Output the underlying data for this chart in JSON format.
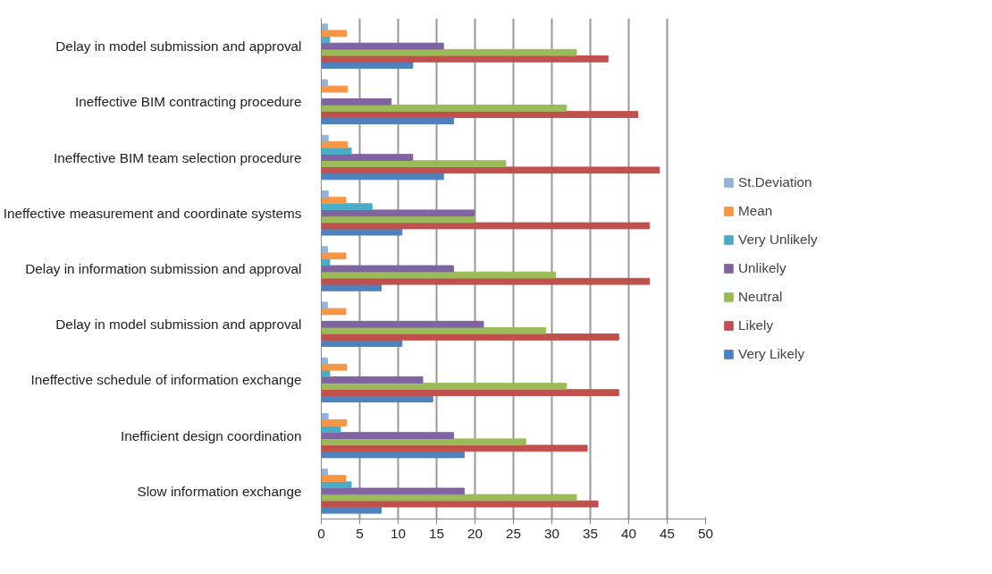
{
  "chart_data": {
    "type": "bar",
    "orientation": "horizontal",
    "categories": [
      "Delay in model submission and approval",
      "Ineffective BIM contracting procedure",
      "Ineffective BIM team selection procedure",
      "Ineffective measurement and coordinate systems",
      "Delay in information submission and approval",
      "Delay in model submission and approval",
      "Ineffective schedule of information exchange",
      "Inefficient design coordination",
      "Slow information exchange"
    ],
    "series": [
      {
        "name": "Very Likely",
        "color": "#4f81bd",
        "values": [
          11.9,
          17.2,
          15.9,
          10.5,
          7.8,
          10.5,
          14.5,
          18.6,
          7.8
        ]
      },
      {
        "name": "Likely",
        "color": "#c0504d",
        "values": [
          37.3,
          41.2,
          44.0,
          42.7,
          42.7,
          38.7,
          38.7,
          34.6,
          36.0
        ]
      },
      {
        "name": "Neutral",
        "color": "#9bbb59",
        "values": [
          33.2,
          31.9,
          24.0,
          20.0,
          30.5,
          29.2,
          31.9,
          26.6,
          33.2
        ]
      },
      {
        "name": "Unlikely",
        "color": "#8064a2",
        "values": [
          15.9,
          9.1,
          11.9,
          19.9,
          17.2,
          21.1,
          13.2,
          17.2,
          18.6
        ]
      },
      {
        "name": "Very Unlikely",
        "color": "#4bacc6",
        "values": [
          1.1,
          null,
          3.9,
          6.6,
          1.1,
          null,
          1.1,
          2.5,
          3.9
        ]
      },
      {
        "name": "Mean",
        "color": "#f79646",
        "values": [
          3.3,
          3.4,
          3.4,
          3.2,
          3.2,
          3.2,
          3.3,
          3.3,
          3.2
        ]
      },
      {
        "name": "St.Deviation",
        "color": "#95b3d7",
        "values": [
          0.8,
          0.8,
          0.9,
          0.9,
          0.8,
          0.8,
          0.8,
          0.9,
          0.8
        ]
      }
    ],
    "xlim": [
      0,
      50
    ],
    "xticks": [
      0,
      5,
      10,
      15,
      20,
      25,
      30,
      35,
      40,
      45,
      50
    ],
    "grid": "x",
    "legend": "right"
  }
}
